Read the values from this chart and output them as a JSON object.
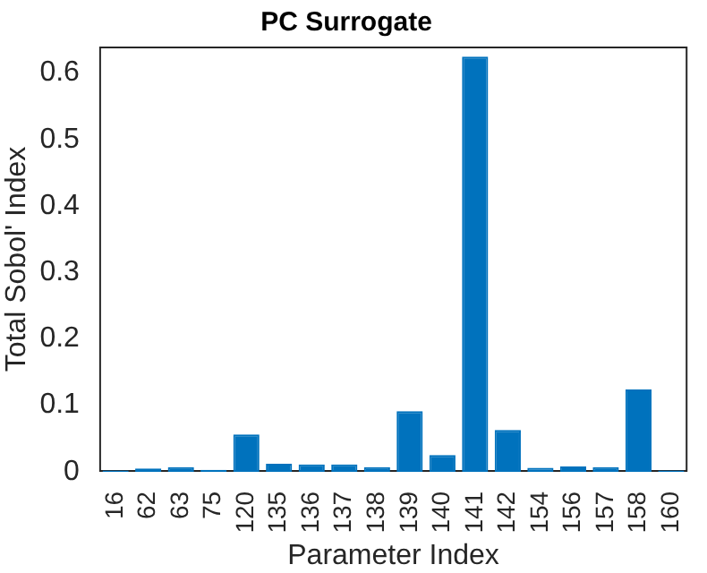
{
  "chart_data": {
    "type": "bar",
    "title": "PC Surrogate",
    "xlabel": "Parameter Index",
    "ylabel": "Total Sobol' Index",
    "categories": [
      "16",
      "62",
      "63",
      "75",
      "120",
      "135",
      "136",
      "137",
      "138",
      "139",
      "140",
      "141",
      "142",
      "154",
      "156",
      "157",
      "158",
      "160"
    ],
    "values": [
      0.002,
      0.005,
      0.007,
      0.003,
      0.056,
      0.012,
      0.011,
      0.011,
      0.007,
      0.091,
      0.025,
      0.625,
      0.063,
      0.006,
      0.008,
      0.007,
      0.124,
      0.002
    ],
    "color": "#0072bd",
    "ylim": [
      0,
      0.64
    ],
    "yticks": [
      0,
      0.1,
      0.2,
      0.3,
      0.4,
      0.5,
      0.6
    ],
    "grid": false,
    "legend": false
  }
}
